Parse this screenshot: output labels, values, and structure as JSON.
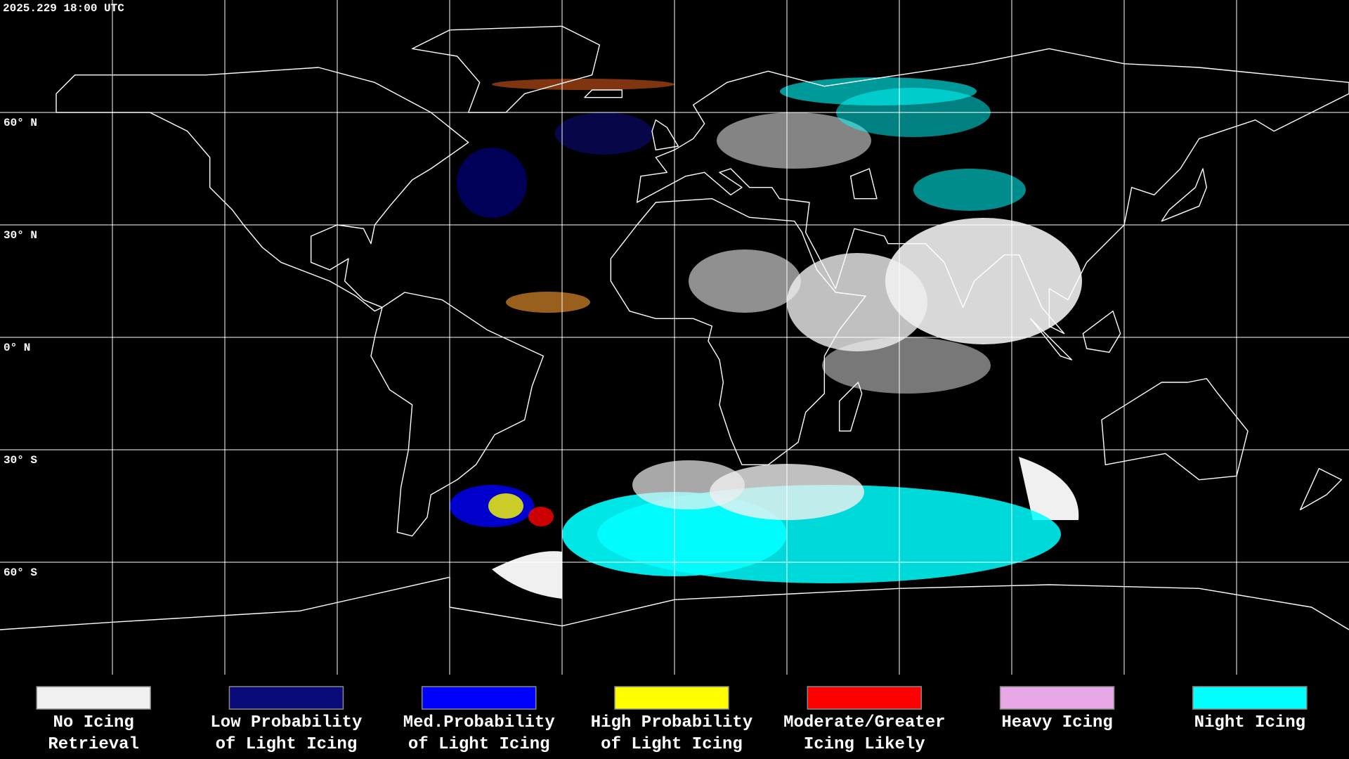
{
  "timestamp": "2025.229 18:00 UTC",
  "graticule": {
    "lat_labels": [
      "60° N",
      "30° N",
      "0° N",
      "30° S",
      "60° S"
    ]
  },
  "legend": {
    "items": [
      {
        "label": [
          "No Icing",
          "Retrieval"
        ],
        "color": "#f0f0f0"
      },
      {
        "label": [
          "Low Probability",
          "of Light Icing"
        ],
        "color": "#0a0a78"
      },
      {
        "label": [
          "Med.Probability",
          "of Light Icing"
        ],
        "color": "#0000ff"
      },
      {
        "label": [
          "High Probability",
          "of Light Icing"
        ],
        "color": "#ffff00"
      },
      {
        "label": [
          "Moderate/Greater",
          "Icing Likely"
        ],
        "color": "#ff0000"
      },
      {
        "label": [
          "Heavy Icing"
        ],
        "color": "#e8a8e8"
      },
      {
        "label": [
          "Night Icing"
        ],
        "color": "#00ffff"
      }
    ]
  }
}
